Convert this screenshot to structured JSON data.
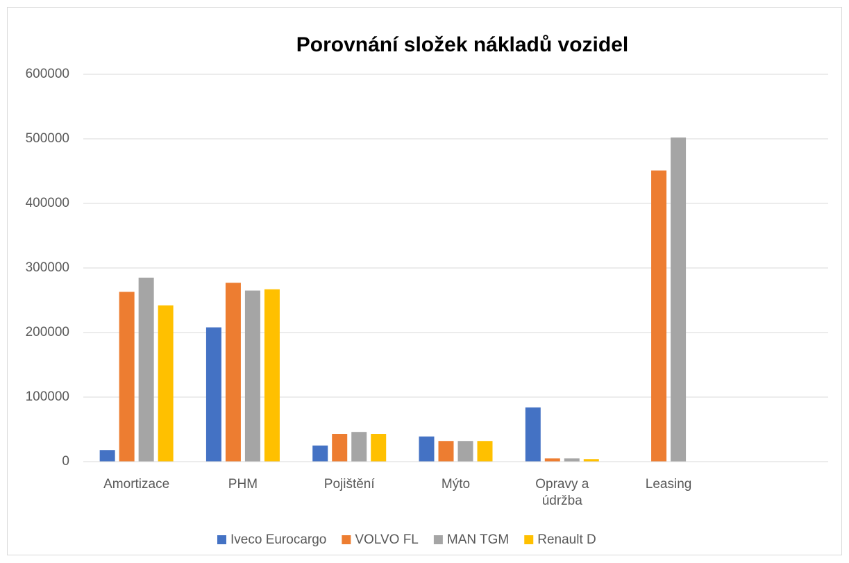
{
  "chart_data": {
    "type": "bar",
    "title": "Porovnání složek nákladů vozidel",
    "categories": [
      "Amortizace",
      "PHM",
      "Pojištění",
      "Mýto",
      "Opravy a údržba",
      "Leasing",
      null
    ],
    "series": [
      {
        "name": "Iveco Eurocargo",
        "color": "#4472c4",
        "values": [
          18000,
          208000,
          25000,
          39000,
          84000,
          0,
          null
        ]
      },
      {
        "name": "VOLVO FL",
        "color": "#ed7d31",
        "values": [
          263000,
          277000,
          43000,
          32000,
          5000,
          451000,
          null
        ]
      },
      {
        "name": "MAN TGM",
        "color": "#a5a5a5",
        "values": [
          285000,
          265000,
          46000,
          32000,
          5000,
          502000,
          null
        ]
      },
      {
        "name": "Renault D",
        "color": "#ffc000",
        "values": [
          242000,
          267000,
          43000,
          32000,
          4000,
          0,
          null
        ]
      }
    ],
    "ylim": [
      0,
      600000
    ],
    "yticks": [
      0,
      100000,
      200000,
      300000,
      400000,
      500000,
      600000
    ],
    "grid": true,
    "legend": "bottom"
  }
}
